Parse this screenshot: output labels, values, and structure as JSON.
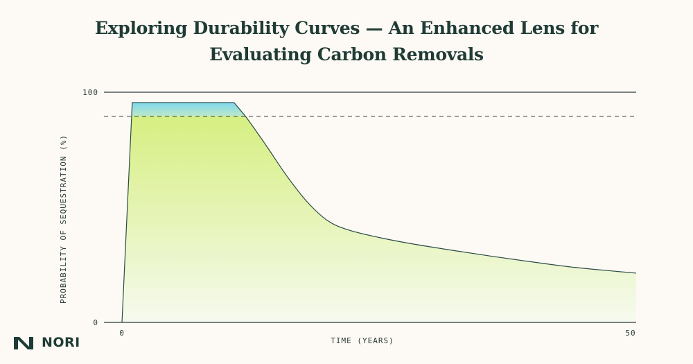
{
  "title_lines": [
    "Exploring Durability Curves — An Enhanced Lens for",
    "Evaluating Carbon Removals"
  ],
  "logo": {
    "text": "NORI"
  },
  "colors": {
    "curve_stroke": "#2a4a44",
    "fill_top": "#d4ee7a",
    "fill_bottom": "#f6faef",
    "buffer_top": "#7fd7ee",
    "buffer_bottom": "#bde8c8",
    "reference_line": "#2a3b38",
    "background": "#fdf9f4"
  },
  "chart_data": {
    "type": "area",
    "title": "Exploring Durability Curves — An Enhanced Lens for Evaluating Carbon Removals",
    "xlabel": "TIME (YEARS)",
    "ylabel": "PROBABILITY OF SEQUESTRATION (%)",
    "xlim": [
      0,
      50
    ],
    "ylim": [
      0,
      100
    ],
    "x_ticks": [
      "0",
      "50"
    ],
    "y_ticks": [
      "0",
      "100"
    ],
    "threshold_line": {
      "y": 89.6,
      "style": "dashed"
    },
    "top_line": {
      "y": 100,
      "style": "solid"
    },
    "series": [
      {
        "x": [
          0,
          1,
          10.9,
          12,
          14,
          16,
          18,
          20,
          22,
          25,
          28,
          32,
          36,
          40,
          44,
          48,
          50
        ],
        "y": [
          0,
          95.5,
          95.5,
          89.6,
          77,
          63.8,
          52.4,
          44.2,
          40.2,
          36.9,
          34.3,
          31.4,
          28.7,
          26.2,
          23.9,
          22.2,
          21.4
        ]
      }
    ],
    "shaded_regions": [
      {
        "name_hidden": true,
        "description_region": "buffer",
        "y_from": 89.6,
        "y_to": 95.5
      }
    ]
  }
}
